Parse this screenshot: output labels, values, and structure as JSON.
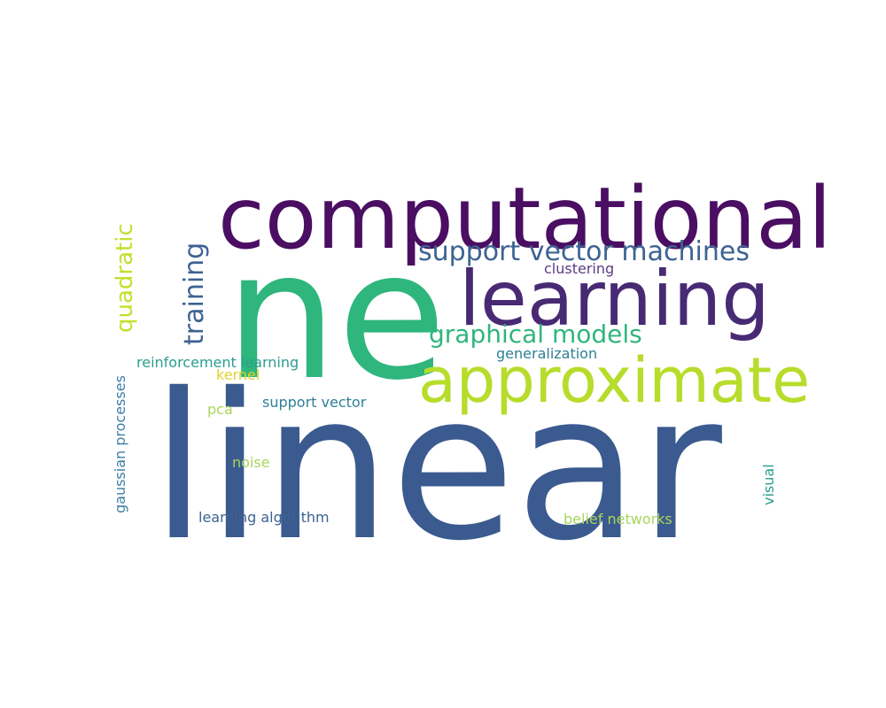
{
  "words": [
    {
      "text": "linear",
      "weight": 1.0,
      "color": "#3b5a8f"
    },
    {
      "text": "ne",
      "weight": 0.9,
      "color": "#2eb67d"
    },
    {
      "text": "computational",
      "weight": 0.7,
      "color": "#4a0e62"
    },
    {
      "text": "learning",
      "weight": 0.65,
      "color": "#482a74"
    },
    {
      "text": "approximate",
      "weight": 0.6,
      "color": "#b7dc2b"
    },
    {
      "text": "support vector machines",
      "weight": 0.3,
      "color": "#3d6392"
    },
    {
      "text": "graphical models",
      "weight": 0.28,
      "color": "#2eb67d"
    },
    {
      "text": "quadratic",
      "weight": 0.26,
      "color": "#c4df2c"
    },
    {
      "text": "training",
      "weight": 0.26,
      "color": "#3d6392"
    },
    {
      "text": "reinforcement learning",
      "weight": 0.15,
      "color": "#2a9d8f"
    },
    {
      "text": "gaussian processes",
      "weight": 0.15,
      "color": "#3d7ea6"
    },
    {
      "text": "support vector",
      "weight": 0.15,
      "color": "#2f7f95"
    },
    {
      "text": "learning algorithm",
      "weight": 0.15,
      "color": "#3d6392"
    },
    {
      "text": "belief networks",
      "weight": 0.15,
      "color": "#a8d65a"
    },
    {
      "text": "generalization",
      "weight": 0.14,
      "color": "#2f7f95"
    },
    {
      "text": "clustering",
      "weight": 0.14,
      "color": "#5b3b86"
    },
    {
      "text": "kernel",
      "weight": 0.13,
      "color": "#e0d22a"
    },
    {
      "text": "pca",
      "weight": 0.13,
      "color": "#a8d65a"
    },
    {
      "text": "noise",
      "weight": 0.13,
      "color": "#a8d65a"
    },
    {
      "text": "visual",
      "weight": 0.13,
      "color": "#2a9d8f"
    }
  ]
}
